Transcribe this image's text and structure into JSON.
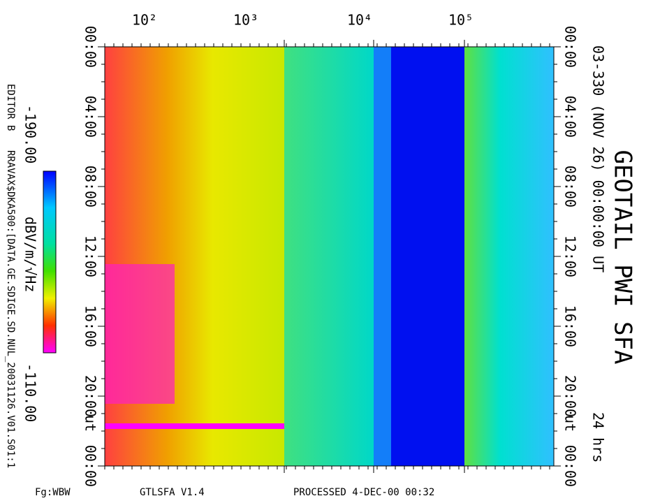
{
  "title": "GEOTAIL PWI SFA",
  "subtitle": "03-330 (NOV 26) 00:00:00 UT",
  "duration": "24 hrs",
  "editor": "EDITOR B",
  "file": "RRAVAX$DKA500:[DATA.GE.SDIGE.SD.NUL_20031126.V01.S01:1",
  "colorbar": {
    "min_label": "-190.00",
    "max_label": "-110.00",
    "unit": "dBV/m/√Hz"
  },
  "freq_labels": [
    "10²",
    "10³",
    "10⁴",
    "10⁵"
  ],
  "time_labels": [
    "00:00",
    "04:00",
    "08:00",
    "12:00",
    "16:00",
    "20:00",
    "00:00"
  ],
  "ut_label": "ut",
  "footer": [
    "Fg:WBW",
    "GTLSFA   V1.4",
    "PROCESSED   4-DEC-00   00:32"
  ]
}
